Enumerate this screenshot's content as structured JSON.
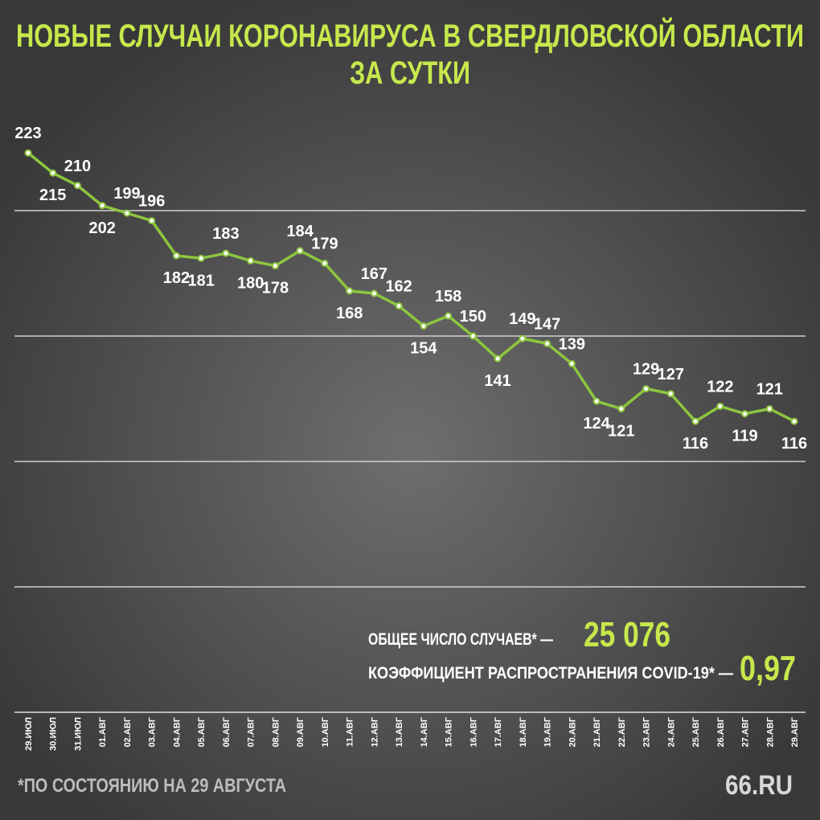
{
  "chart_data": {
    "type": "line",
    "title": "НОВЫЕ СЛУЧАИ КОРОНАВИРУСА В СВЕРДЛОВСКОЙ ОБЛАСТИ",
    "subtitle": "ЗА СУТКИ",
    "categories": [
      "29.ИЮЛ",
      "30.ИЮЛ",
      "31.ИЮЛ",
      "01.АВГ",
      "02.АВГ",
      "03.АВГ",
      "04.АВГ",
      "05.АВГ",
      "06.АВГ",
      "07.АВГ",
      "08.АВГ",
      "09.АВГ",
      "10.АВГ",
      "11.АВГ",
      "12.АВГ",
      "13.АВГ",
      "14.АВГ",
      "15.АВГ",
      "16.АВГ",
      "17.АВГ",
      "18.АВГ",
      "19.АВГ",
      "20.АВГ",
      "21.АВГ",
      "22.АВГ",
      "23.АВГ",
      "24.АВГ",
      "25.АВГ",
      "26.АВГ",
      "27.АВГ",
      "28.АВГ",
      "29.АВГ"
    ],
    "values": [
      223,
      215,
      210,
      202,
      199,
      196,
      182,
      181,
      183,
      180,
      178,
      184,
      179,
      168,
      167,
      162,
      154,
      158,
      150,
      141,
      149,
      147,
      139,
      124,
      121,
      129,
      127,
      116,
      122,
      119,
      121,
      116
    ],
    "color": "#8dc63f",
    "ylim": [
      50,
      250
    ],
    "yticks": [
      50,
      100,
      150,
      200
    ],
    "grid": true,
    "annotations": [
      {
        "label": "ОБЩЕЕ ЧИСЛО СЛУЧАЕВ* —",
        "value": "25 076"
      },
      {
        "label": "КОЭФФИЦИЕНТ РАСПРОСТРАНЕНИЯ COVID-19* —",
        "value": "0,97"
      }
    ],
    "footnote": "*ПО СОСТОЯНИЮ НА 29 АВГУСТА",
    "source": "66.RU"
  }
}
